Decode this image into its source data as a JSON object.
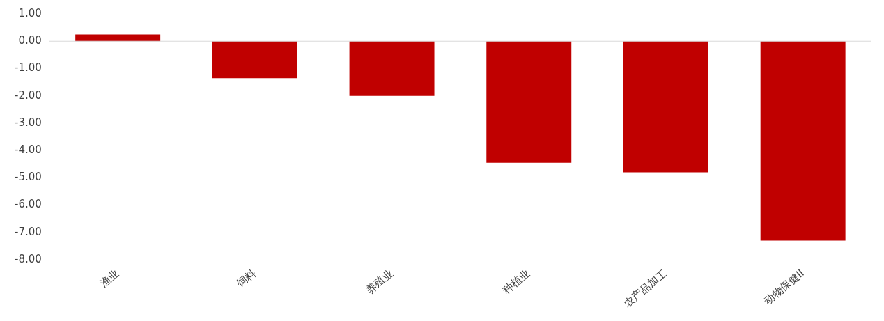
{
  "chart_data": {
    "type": "bar",
    "categories": [
      "渔业",
      "饲料",
      "养殖业",
      "种植业",
      "农产品加工",
      "动物保健II"
    ],
    "values": [
      0.25,
      -1.35,
      -2.0,
      -4.45,
      -4.8,
      -7.3
    ],
    "color": "#c00000",
    "ylim": [
      -8,
      1
    ],
    "yticks": [
      {
        "value": 1,
        "label": "1.00"
      },
      {
        "value": 0,
        "label": "0.00"
      },
      {
        "value": -1,
        "label": "-1.00"
      },
      {
        "value": -2,
        "label": "-2.00"
      },
      {
        "value": -3,
        "label": "-3.00"
      },
      {
        "value": -4,
        "label": "-4.00"
      },
      {
        "value": -5,
        "label": "-5.00"
      },
      {
        "value": -6,
        "label": "-6.00"
      },
      {
        "value": -7,
        "label": "-7.00"
      },
      {
        "value": -8,
        "label": "-8.00"
      }
    ],
    "ref_lines": [
      {
        "axis": "y",
        "value": 0,
        "color": "#d9d9d9"
      }
    ],
    "grid": false,
    "legend": false
  }
}
